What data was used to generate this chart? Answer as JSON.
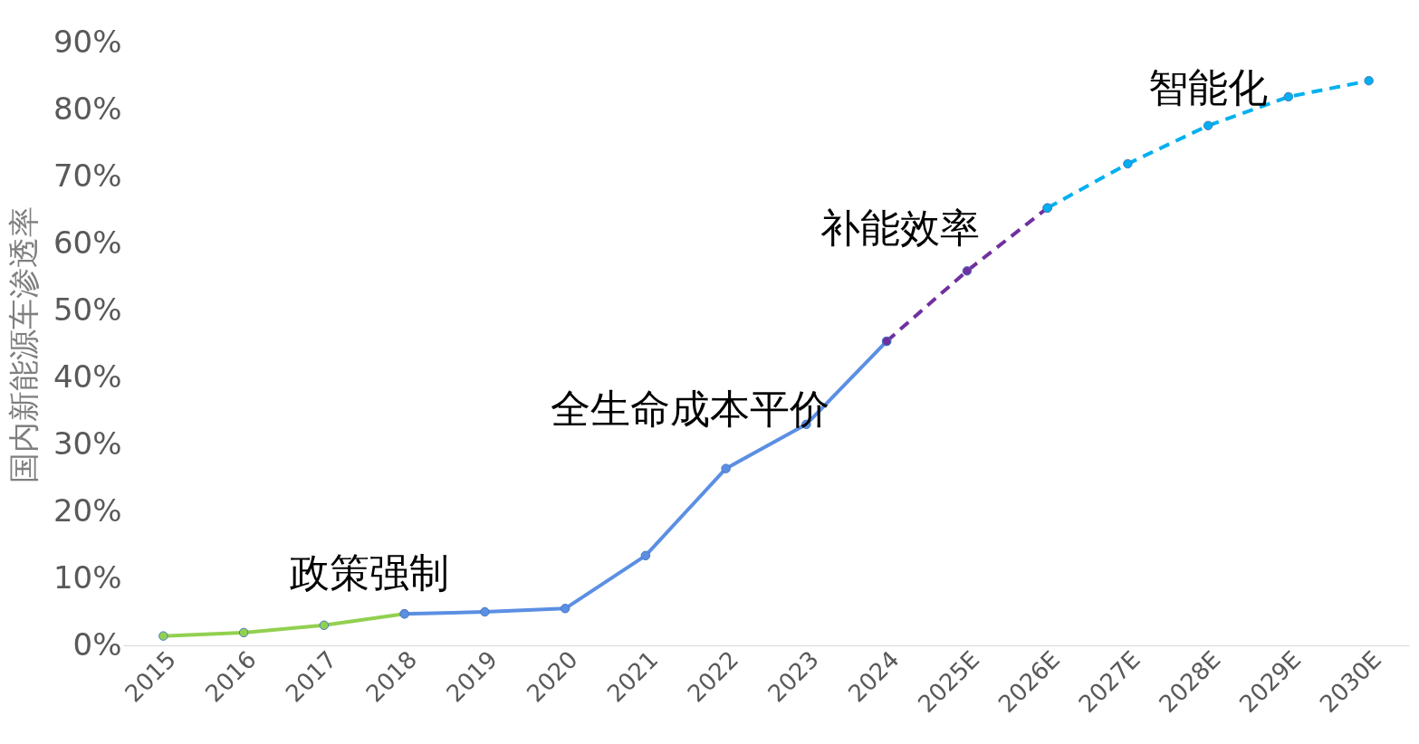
{
  "chart_data": {
    "type": "line",
    "ylabel": "国内新能源车渗透率",
    "categories": [
      "2015",
      "2016",
      "2017",
      "2018",
      "2019",
      "2020",
      "2021",
      "2022",
      "2023",
      "2024",
      "2025E",
      "2026E",
      "2027E",
      "2028E",
      "2029E",
      "2030E"
    ],
    "series": [
      {
        "color": "#92d050",
        "line_style": "solid",
        "values": [
          1.4,
          1.9,
          3.0,
          4.7,
          null,
          null,
          null,
          null,
          null,
          null,
          null,
          null,
          null,
          null,
          null,
          null
        ]
      },
      {
        "color": "#5b8fe3",
        "line_style": "solid",
        "values": [
          null,
          null,
          null,
          4.7,
          5.0,
          5.5,
          13.4,
          26.4,
          33.0,
          45.4,
          null,
          null,
          null,
          null,
          null,
          null
        ]
      },
      {
        "color": "#7030a0",
        "line_style": "dashed",
        "values": [
          null,
          null,
          null,
          null,
          null,
          null,
          null,
          null,
          null,
          45.4,
          55.9,
          65.3,
          null,
          null,
          null,
          null
        ]
      },
      {
        "color": "#00b0f0",
        "line_style": "dashed",
        "values": [
          null,
          null,
          null,
          null,
          null,
          null,
          null,
          null,
          null,
          null,
          null,
          65.3,
          71.9,
          77.6,
          81.9,
          84.3
        ]
      }
    ],
    "ylim": [
      0,
      90
    ],
    "yticks": [
      {
        "value": 0,
        "label": "0%"
      },
      {
        "value": 10,
        "label": "10%"
      },
      {
        "value": 20,
        "label": "20%"
      },
      {
        "value": 30,
        "label": "30%"
      },
      {
        "value": 40,
        "label": "40%"
      },
      {
        "value": 50,
        "label": "50%"
      },
      {
        "value": 60,
        "label": "60%"
      },
      {
        "value": 70,
        "label": "70%"
      },
      {
        "value": 80,
        "label": "80%"
      },
      {
        "value": 90,
        "label": "90%"
      }
    ],
    "annotations": [
      "政策强制",
      "全生命成本平价",
      "补能效率",
      "智能化"
    ],
    "grid": false,
    "marker": "circle"
  }
}
